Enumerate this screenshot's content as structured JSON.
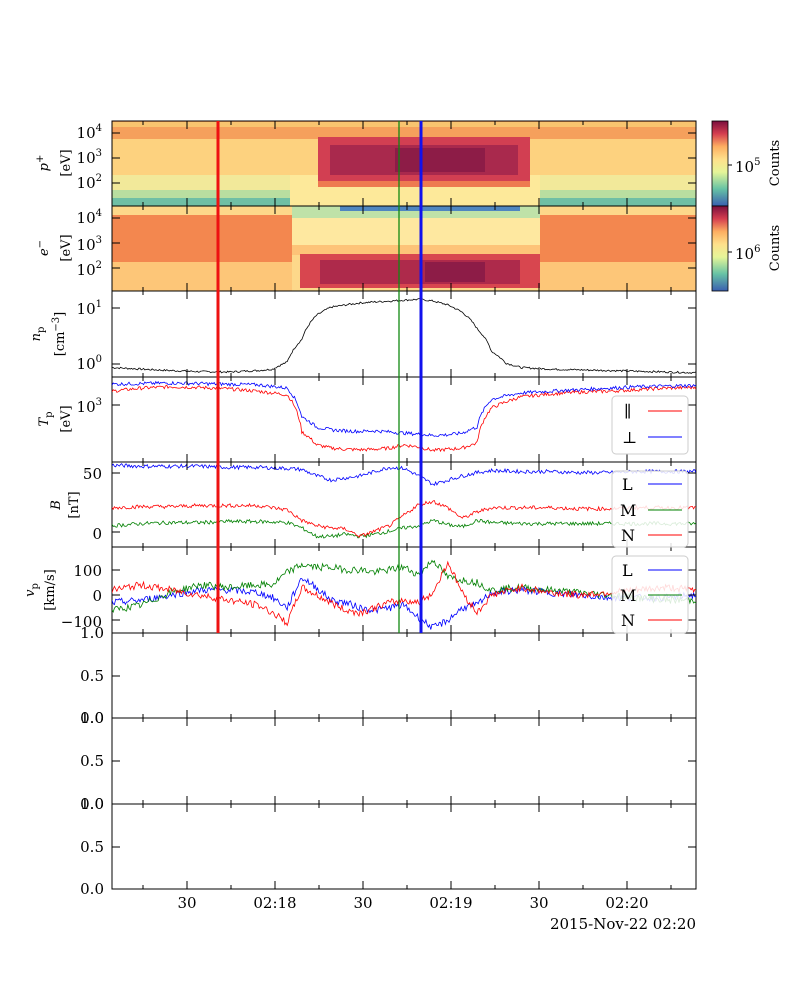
{
  "figure": {
    "date_label": "2015-Nov-22 02:20",
    "x_tick_labels": [
      "30",
      "02:18",
      "30",
      "02:19",
      "30",
      "02:20"
    ]
  },
  "markers": {
    "red_line_color": "#ee1111",
    "green_line_color": "#118811",
    "blue_line_color": "#1111ee"
  },
  "colors": {
    "black": "#000000",
    "red": "#ff0000",
    "blue": "#0000ff",
    "green": "#008000"
  },
  "panels": {
    "proton": {
      "ylabel_1": "p",
      "ylabel_sup": "+",
      "ylabel_2": "[eV]",
      "ticks": [
        "10",
        "10",
        "10"
      ],
      "exps": [
        "2",
        "3",
        "4"
      ],
      "colorbar_label": "Counts",
      "colorbar_tick": "10",
      "colorbar_exp": "5"
    },
    "electron": {
      "ylabel_1": "e",
      "ylabel_sup": "−",
      "ylabel_2": "[eV]",
      "ticks": [
        "10",
        "10",
        "10"
      ],
      "exps": [
        "2",
        "3",
        "4"
      ],
      "colorbar_label": "Counts",
      "colorbar_tick": "10",
      "colorbar_exp": "6"
    },
    "density": {
      "ylabel_1": "n",
      "ylabel_sub": "p",
      "ylabel_2": "[cm",
      "ylabel_sup2": "−3",
      "ylabel_3": "]",
      "ticks": [
        "10",
        "10"
      ],
      "exps": [
        "0",
        "1"
      ]
    },
    "temperature": {
      "ylabel_1": "T",
      "ylabel_sub": "p",
      "ylabel_2": "[eV]",
      "ticks": [
        "10"
      ],
      "exps": [
        "3"
      ],
      "legend": [
        "∥",
        "⊥"
      ]
    },
    "bfield": {
      "ylabel_1": "B",
      "ylabel_2": "[nT]",
      "ticks": [
        "0",
        "50"
      ],
      "legend": [
        "L",
        "M",
        "N"
      ]
    },
    "velocity": {
      "ylabel_1": "v",
      "ylabel_sub": "p",
      "ylabel_2": "[km/s]",
      "ticks": [
        "−100",
        "0",
        "100"
      ],
      "legend": [
        "L",
        "M",
        "N"
      ]
    },
    "empty": {
      "ticks": [
        "0.0",
        "0.5",
        "1.0"
      ]
    }
  },
  "chart_data": [
    {
      "type": "heatmap",
      "panel": "proton",
      "ylabel": "p+ [eV]",
      "yscale": "log",
      "ylim": [
        10,
        20000
      ],
      "colorbar": "Counts",
      "colorbar_scale": "log",
      "description_bands": [
        {
          "t_start": 28.0,
          "t_end": 48.0,
          "energy_low": 40,
          "energy_high": 2000,
          "level": "high"
        },
        {
          "t_start": 0,
          "t_end": 80,
          "energy_low": 3000,
          "energy_high": 12000,
          "level": "medium"
        }
      ]
    },
    {
      "type": "heatmap",
      "panel": "electron",
      "ylabel": "e− [eV]",
      "yscale": "log",
      "ylim": [
        10,
        20000
      ],
      "colorbar": "Counts",
      "colorbar_scale": "log",
      "description_bands": [
        {
          "t_start": 24.0,
          "t_end": 51.0,
          "energy_low": 30,
          "energy_high": 200,
          "level": "high"
        }
      ]
    },
    {
      "type": "line",
      "panel": "density",
      "ylabel": "n_p [cm^-3]",
      "yscale": "log",
      "ylim": [
        0.5,
        20
      ],
      "x_minutes": [
        0,
        4,
        8,
        12,
        16,
        20,
        22,
        24,
        26,
        28,
        30,
        32,
        34,
        36,
        38,
        40,
        42,
        44,
        46,
        48,
        50,
        52,
        54,
        56,
        60,
        64,
        68,
        72,
        76,
        80
      ],
      "series": [
        {
          "values": [
            0.75,
            0.7,
            0.66,
            0.63,
            0.62,
            0.66,
            0.7,
            0.95,
            2.5,
            7,
            10,
            11,
            12,
            12.5,
            13,
            13.5,
            14,
            13,
            11,
            8,
            4,
            1.5,
            0.9,
            0.75,
            0.7,
            0.68,
            0.66,
            0.64,
            0.62,
            0.6
          ]
        }
      ]
    },
    {
      "type": "line",
      "panel": "temperature",
      "ylabel": "T_p [eV]",
      "yscale": "log",
      "ylim": [
        50,
        2500
      ],
      "x_minutes": [
        0,
        4,
        8,
        12,
        16,
        20,
        24,
        26,
        28,
        30,
        32,
        34,
        36,
        38,
        40,
        42,
        44,
        46,
        48,
        50,
        52,
        56,
        60,
        64,
        68,
        72,
        76,
        80
      ],
      "series": [
        {
          "name": "∥",
          "values": [
            1300,
            1500,
            1600,
            1550,
            1450,
            1300,
            1100,
            200,
            110,
            95,
            90,
            88,
            90,
            95,
            110,
            100,
            85,
            90,
            95,
            120,
            600,
            1000,
            1150,
            1250,
            1300,
            1400,
            1500,
            1550
          ]
        },
        {
          "name": "⊥",
          "values": [
            1800,
            1850,
            1900,
            1850,
            1800,
            1750,
            1500,
            400,
            250,
            220,
            210,
            205,
            210,
            200,
            190,
            180,
            170,
            175,
            190,
            250,
            900,
            1200,
            1300,
            1400,
            1500,
            1600,
            1650,
            1700
          ]
        }
      ]
    },
    {
      "type": "line",
      "panel": "bfield",
      "ylabel": "B [nT]",
      "ylim": [
        -15,
        65
      ],
      "x_minutes": [
        0,
        4,
        8,
        12,
        16,
        20,
        24,
        26,
        28,
        30,
        32,
        34,
        36,
        38,
        40,
        42,
        44,
        46,
        48,
        50,
        52,
        56,
        60,
        64,
        68,
        72,
        76,
        80
      ],
      "series": [
        {
          "name": "L",
          "values": [
            62,
            61,
            61,
            61,
            60,
            60,
            59,
            58,
            52,
            48,
            50,
            52,
            56,
            60,
            59,
            52,
            44,
            48,
            52,
            55,
            57,
            56,
            56,
            55,
            55,
            56,
            56,
            56
          ]
        },
        {
          "name": "M",
          "values": [
            5,
            7,
            8,
            8,
            9,
            9,
            8,
            3,
            -5,
            -5,
            -3,
            -5,
            -3,
            0,
            3,
            5,
            10,
            6,
            4,
            10,
            8,
            7,
            7,
            7,
            7,
            7,
            7,
            7
          ]
        },
        {
          "name": "N",
          "values": [
            22,
            23,
            23,
            24,
            24,
            24,
            20,
            10,
            5,
            3,
            2,
            -5,
            0,
            5,
            15,
            25,
            28,
            22,
            12,
            18,
            22,
            22,
            22,
            21,
            21,
            22,
            22,
            22
          ]
        }
      ]
    },
    {
      "type": "line",
      "panel": "velocity",
      "ylabel": "v_p [km/s]",
      "ylim": [
        -140,
        200
      ],
      "x_minutes": [
        0,
        4,
        8,
        12,
        16,
        20,
        22,
        24,
        26,
        28,
        30,
        32,
        34,
        36,
        38,
        40,
        42,
        44,
        46,
        48,
        50,
        52,
        56,
        60,
        64,
        68,
        72,
        76,
        80
      ],
      "series": [
        {
          "name": "L",
          "values": [
            -20,
            -10,
            10,
            30,
            30,
            20,
            0,
            -40,
            80,
            40,
            -10,
            -20,
            -40,
            -50,
            -40,
            -30,
            -80,
            -120,
            -90,
            -40,
            -30,
            20,
            30,
            20,
            10,
            0,
            0,
            0,
            10
          ]
        },
        {
          "name": "M",
          "values": [
            -50,
            -30,
            20,
            50,
            40,
            50,
            50,
            100,
            130,
            120,
            120,
            110,
            110,
            100,
            110,
            120,
            90,
            150,
            80,
            70,
            60,
            30,
            40,
            30,
            20,
            10,
            0,
            -10,
            -10
          ]
        },
        {
          "name": "N",
          "values": [
            30,
            50,
            30,
            10,
            -10,
            -30,
            -60,
            -100,
            40,
            10,
            -20,
            -50,
            -60,
            -40,
            -20,
            -10,
            -20,
            20,
            140,
            20,
            -60,
            10,
            40,
            20,
            10,
            20,
            30,
            40,
            30
          ]
        }
      ]
    },
    {
      "type": "line",
      "panel": "empty-1",
      "ylim": [
        0,
        1
      ],
      "series": []
    },
    {
      "type": "line",
      "panel": "empty-2",
      "ylim": [
        0,
        1
      ],
      "series": []
    },
    {
      "type": "line",
      "panel": "empty-3",
      "ylim": [
        0,
        1
      ],
      "series": []
    }
  ]
}
